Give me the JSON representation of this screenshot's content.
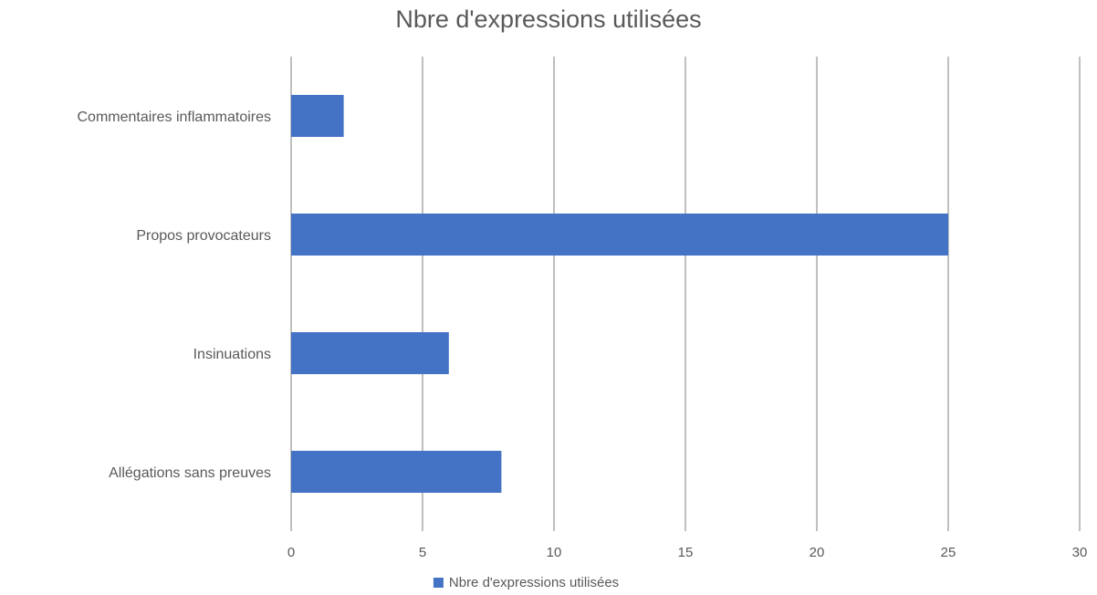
{
  "chart_data": {
    "type": "bar",
    "orientation": "horizontal",
    "title": "Nbre d'expressions utilisées",
    "categories": [
      "Commentaires inflammatoires",
      "Propos provocateurs",
      "Insinuations",
      "Allégations sans preuves"
    ],
    "series": [
      {
        "name": "Nbre d'expressions utilisées",
        "values": [
          2,
          25,
          6,
          8
        ],
        "color": "#4472C4"
      }
    ],
    "xlabel": "",
    "ylabel": "",
    "xlim": [
      0,
      30
    ],
    "xticks": [
      0,
      5,
      10,
      15,
      20,
      25,
      30
    ],
    "grid": true,
    "legend": "bottom"
  },
  "colors": {
    "bar": "#4472C4",
    "gridline": "#BFBFBF",
    "axis_text": "#595959",
    "title_text": "#595959"
  }
}
